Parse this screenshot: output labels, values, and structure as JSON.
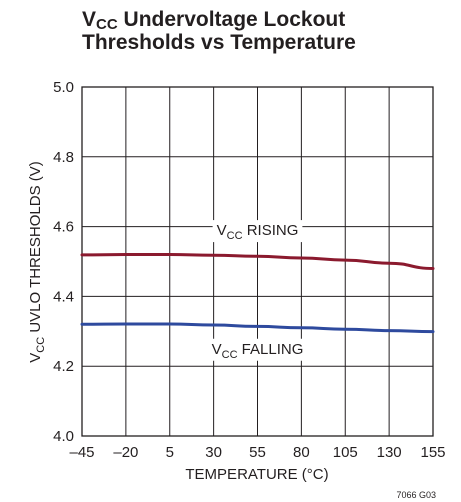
{
  "chart_data": {
    "type": "line",
    "title_line1_main": "V",
    "title_line1_sub": "CC",
    "title_line1_rest": " Undervoltage Lockout",
    "title_line2": "Thresholds vs Temperature",
    "xlabel": "TEMPERATURE (°C)",
    "ylabel_main": "V",
    "ylabel_sub": "CC",
    "ylabel_rest": " UVLO THRESHOLDS (V)",
    "xlim": [
      -45,
      155
    ],
    "ylim": [
      4.0,
      5.0
    ],
    "x_ticks": [
      -45,
      -20,
      5,
      30,
      55,
      80,
      105,
      130,
      155
    ],
    "x_tick_labels": [
      "–45",
      "–20",
      "5",
      "30",
      "55",
      "80",
      "105",
      "130",
      "155"
    ],
    "y_ticks": [
      4.0,
      4.2,
      4.4,
      4.6,
      4.8,
      5.0
    ],
    "y_tick_labels": [
      "4.0",
      "4.2",
      "4.4",
      "4.6",
      "4.8",
      "5.0"
    ],
    "grid": true,
    "series": [
      {
        "name_main": "V",
        "name_sub": "CC",
        "name_rest": " RISING",
        "color": "#8b1a2e",
        "x": [
          -45,
          -20,
          5,
          30,
          55,
          80,
          105,
          130,
          155
        ],
        "y": [
          4.519,
          4.52,
          4.52,
          4.518,
          4.515,
          4.51,
          4.504,
          4.495,
          4.48
        ]
      },
      {
        "name_main": "V",
        "name_sub": "CC",
        "name_rest": " FALLING",
        "color": "#2e4a9e",
        "x": [
          -45,
          -20,
          5,
          30,
          55,
          80,
          105,
          130,
          155
        ],
        "y": [
          4.32,
          4.321,
          4.321,
          4.318,
          4.314,
          4.31,
          4.306,
          4.302,
          4.299
        ]
      }
    ],
    "footnote": "7066 G03"
  }
}
